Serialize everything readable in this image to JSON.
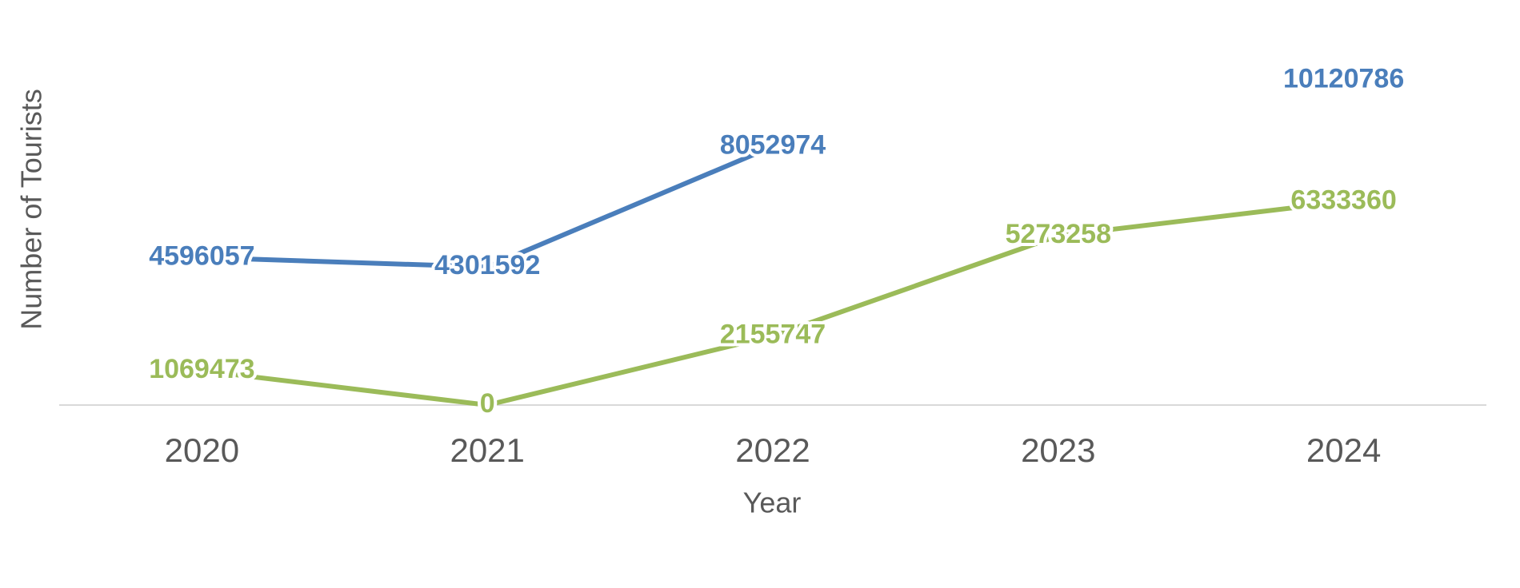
{
  "chart_data": {
    "type": "line",
    "x_label": "Year",
    "y_label": "Number of Tourists",
    "categories": [
      "2020",
      "2021",
      "2022",
      "2023",
      "2024"
    ],
    "series": [
      {
        "color": "#4a7ebb",
        "values": [
          4596057,
          4301592,
          8052974,
          null,
          10120786
        ]
      },
      {
        "color": "#9bbb59",
        "values": [
          1069473,
          0,
          2155747,
          5273258,
          6333360
        ]
      }
    ],
    "ylim": [
      0,
      11000000
    ]
  }
}
